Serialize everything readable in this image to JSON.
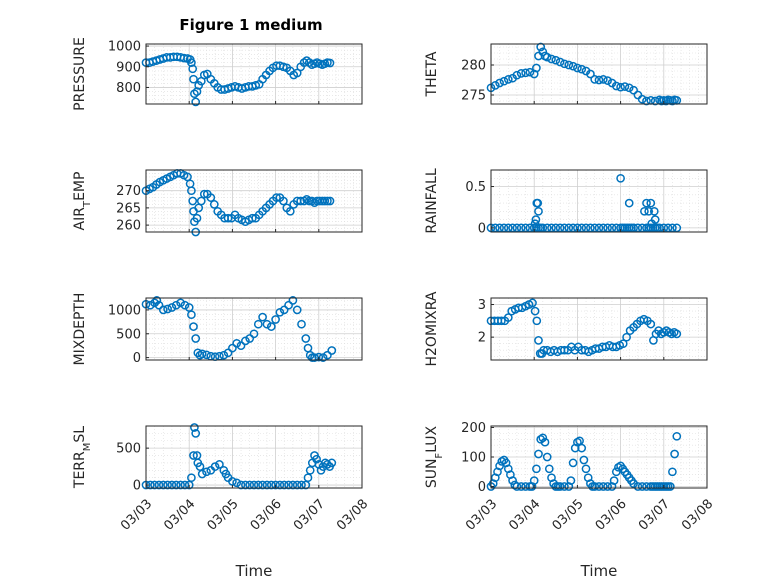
{
  "figure_title": "Figure 1 medium",
  "colors": {
    "marker": "#0072BD",
    "axis": "#262626",
    "grid": "#dcdcdc"
  },
  "chart_data": [
    {
      "id": "pressure",
      "type": "scatter",
      "title": "Figure 1 medium",
      "ylabel": "PRESSURE",
      "ylabel_main": "PRESSURE",
      "ylabel_sub": "",
      "ylabel_tail": "",
      "xlabel": "",
      "ylim": [
        720,
        1010
      ],
      "yticks": [
        800,
        900,
        1000
      ],
      "ytick_labels": [
        "800",
        "900",
        "1000"
      ],
      "x_day_start": 3,
      "xlim": [
        3,
        8
      ],
      "x": [
        3.0,
        3.08,
        3.16,
        3.24,
        3.32,
        3.4,
        3.48,
        3.56,
        3.64,
        3.72,
        3.8,
        3.88,
        3.96,
        4.02,
        4.05,
        4.08,
        4.1,
        4.12,
        4.15,
        4.18,
        4.22,
        4.28,
        4.35,
        4.42,
        4.5,
        4.58,
        4.66,
        4.74,
        4.82,
        4.9,
        4.98,
        5.06,
        5.14,
        5.22,
        5.3,
        5.38,
        5.46,
        5.54,
        5.62,
        5.7,
        5.78,
        5.86,
        5.94,
        6.02,
        6.1,
        6.18,
        6.26,
        6.34,
        6.42,
        6.5,
        6.58,
        6.66,
        6.72,
        6.78,
        6.84,
        6.9,
        6.96,
        7.02,
        7.08,
        7.14,
        7.2,
        7.26
      ],
      "y": [
        920,
        920,
        925,
        930,
        935,
        940,
        945,
        945,
        948,
        948,
        945,
        942,
        940,
        935,
        920,
        890,
        840,
        770,
        730,
        780,
        810,
        830,
        860,
        865,
        840,
        820,
        800,
        790,
        790,
        795,
        800,
        805,
        800,
        795,
        800,
        805,
        805,
        810,
        815,
        840,
        860,
        880,
        895,
        905,
        905,
        900,
        895,
        880,
        860,
        870,
        900,
        920,
        930,
        920,
        910,
        915,
        920,
        915,
        910,
        915,
        920,
        918
      ]
    },
    {
      "id": "theta",
      "type": "scatter",
      "ylabel": "THETA",
      "ylabel_main": "THETA",
      "ylabel_sub": "",
      "ylabel_tail": "",
      "xlabel": "",
      "ylim": [
        273.5,
        283.5
      ],
      "yticks": [
        275,
        280
      ],
      "ytick_labels": [
        "275",
        "280"
      ],
      "x_day_start": 3,
      "xlim": [
        3,
        8
      ],
      "x": [
        3.0,
        3.1,
        3.2,
        3.3,
        3.4,
        3.5,
        3.6,
        3.7,
        3.8,
        3.9,
        4.0,
        4.05,
        4.1,
        4.15,
        4.2,
        4.25,
        4.3,
        4.4,
        4.5,
        4.6,
        4.7,
        4.8,
        4.9,
        5.0,
        5.1,
        5.2,
        5.3,
        5.4,
        5.5,
        5.6,
        5.7,
        5.8,
        5.9,
        6.0,
        6.1,
        6.2,
        6.3,
        6.4,
        6.5,
        6.6,
        6.7,
        6.8,
        6.9,
        6.95,
        7.0,
        7.05,
        7.1,
        7.15,
        7.2,
        7.25,
        7.3
      ],
      "y": [
        276.2,
        276.6,
        277.0,
        277.3,
        277.6,
        277.8,
        278.3,
        278.6,
        278.7,
        278.8,
        278.5,
        279.5,
        281.5,
        283.0,
        282.2,
        281.5,
        281.3,
        281.0,
        280.8,
        280.5,
        280.2,
        280.0,
        279.8,
        279.5,
        279.3,
        279.0,
        278.5,
        277.6,
        277.5,
        277.6,
        277.4,
        277.0,
        276.5,
        276.3,
        276.4,
        276.2,
        275.8,
        275.0,
        274.3,
        274.0,
        274.1,
        274.0,
        274.2,
        274.0,
        274.1,
        274.0,
        274.2,
        274.1,
        274.0,
        274.2,
        274.1
      ]
    },
    {
      "id": "airtemp",
      "type": "scatter",
      "ylabel": "AIR_TEMP",
      "ylabel_main": "AIR",
      "ylabel_sub": "T",
      "ylabel_tail": "EMP",
      "xlabel": "",
      "ylim": [
        258,
        276
      ],
      "yticks": [
        260,
        265,
        270
      ],
      "ytick_labels": [
        "260",
        "265",
        "270"
      ],
      "x_day_start": 3,
      "xlim": [
        3,
        8
      ],
      "x": [
        3.0,
        3.08,
        3.16,
        3.24,
        3.32,
        3.4,
        3.48,
        3.56,
        3.64,
        3.72,
        3.8,
        3.88,
        3.96,
        4.02,
        4.05,
        4.08,
        4.1,
        4.12,
        4.15,
        4.18,
        4.22,
        4.28,
        4.35,
        4.42,
        4.5,
        4.58,
        4.66,
        4.74,
        4.82,
        4.9,
        4.98,
        5.06,
        5.14,
        5.22,
        5.3,
        5.38,
        5.46,
        5.54,
        5.62,
        5.7,
        5.78,
        5.86,
        5.94,
        6.02,
        6.1,
        6.18,
        6.26,
        6.34,
        6.42,
        6.5,
        6.58,
        6.66,
        6.72,
        6.78,
        6.84,
        6.9,
        6.96,
        7.02,
        7.08,
        7.14,
        7.2,
        7.26
      ],
      "y": [
        270,
        270.5,
        271,
        271.8,
        272.5,
        273,
        273.5,
        274,
        274.5,
        275,
        275,
        274.5,
        274,
        272,
        270,
        267,
        264,
        261,
        258,
        262,
        265,
        267,
        269,
        269,
        268,
        266,
        264,
        263,
        262,
        262,
        262,
        263,
        262,
        261.5,
        261,
        261.5,
        262,
        262,
        263,
        264,
        265,
        266,
        267,
        268,
        268,
        267,
        265,
        264,
        266,
        267,
        267,
        267,
        267.5,
        267,
        267,
        266.5,
        267,
        267,
        267,
        267,
        267,
        267
      ]
    },
    {
      "id": "rainfall",
      "type": "scatter",
      "ylabel": "RAINFALL",
      "ylabel_main": "RAINFALL",
      "ylabel_sub": "",
      "ylabel_tail": "",
      "xlabel": "",
      "ylim": [
        -0.05,
        0.7
      ],
      "yticks": [
        0,
        0.5
      ],
      "ytick_labels": [
        "0",
        "0.5"
      ],
      "x_day_start": 3,
      "xlim": [
        3,
        8
      ],
      "x": [
        3.0,
        3.1,
        3.2,
        3.3,
        3.4,
        3.5,
        3.6,
        3.7,
        3.8,
        3.9,
        4.0,
        4.05,
        4.1,
        4.15,
        4.2,
        4.3,
        4.4,
        4.5,
        4.6,
        4.7,
        4.8,
        4.9,
        5.0,
        5.1,
        5.2,
        5.3,
        5.4,
        5.5,
        5.6,
        5.7,
        5.8,
        5.9,
        6.0,
        6.05,
        6.1,
        6.15,
        6.2,
        6.25,
        6.3,
        6.4,
        6.5,
        6.6,
        6.65,
        6.7,
        6.75,
        6.8,
        6.85,
        6.9,
        7.0,
        7.1,
        7.2,
        7.3,
        4.02,
        4.04,
        4.06,
        4.08,
        4.1,
        6.0,
        6.2,
        6.55,
        6.6,
        6.65,
        6.7,
        6.72,
        6.78,
        6.8
      ],
      "y": [
        0,
        0,
        0,
        0,
        0,
        0,
        0,
        0,
        0,
        0,
        0,
        0,
        0,
        0,
        0,
        0,
        0,
        0,
        0,
        0,
        0,
        0,
        0,
        0,
        0,
        0,
        0,
        0,
        0,
        0,
        0,
        0,
        0,
        0,
        0,
        0,
        0,
        0,
        0,
        0,
        0,
        0,
        0,
        0,
        0,
        0,
        0,
        0,
        0,
        0,
        0,
        0,
        0.05,
        0.1,
        0.3,
        0.3,
        0.2,
        0.6,
        0.3,
        0.2,
        0.3,
        0.2,
        0.3,
        0.05,
        0.2,
        0.1
      ]
    },
    {
      "id": "mixdepth",
      "type": "scatter",
      "ylabel": "MIXDEPTH",
      "ylabel_main": "MIXDEPTH",
      "ylabel_sub": "",
      "ylabel_tail": "",
      "xlabel": "",
      "ylim": [
        -50,
        1250
      ],
      "yticks": [
        0,
        500,
        1000
      ],
      "ytick_labels": [
        "0",
        "500",
        "1000"
      ],
      "x_day_start": 3,
      "xlim": [
        3,
        8
      ],
      "x": [
        3.0,
        3.1,
        3.2,
        3.25,
        3.3,
        3.4,
        3.5,
        3.6,
        3.7,
        3.8,
        3.9,
        4.0,
        4.05,
        4.1,
        4.15,
        4.2,
        4.25,
        4.3,
        4.4,
        4.5,
        4.6,
        4.7,
        4.8,
        4.9,
        5.0,
        5.1,
        5.2,
        5.3,
        5.4,
        5.5,
        5.6,
        5.7,
        5.8,
        5.9,
        6.0,
        6.1,
        6.2,
        6.3,
        6.4,
        6.5,
        6.6,
        6.7,
        6.75,
        6.8,
        6.85,
        6.9,
        7.0,
        7.1,
        7.2,
        7.3
      ],
      "y": [
        1120,
        1100,
        1150,
        1200,
        1100,
        1000,
        1020,
        1050,
        1100,
        1150,
        1100,
        1050,
        900,
        650,
        400,
        100,
        50,
        80,
        60,
        30,
        20,
        30,
        50,
        100,
        200,
        300,
        250,
        350,
        400,
        500,
        700,
        850,
        700,
        650,
        800,
        950,
        1000,
        1100,
        1200,
        1000,
        700,
        400,
        200,
        50,
        0,
        0,
        10,
        0,
        50,
        150
      ]
    },
    {
      "id": "h2omixra",
      "type": "scatter",
      "ylabel": "H2OMIXRA",
      "ylabel_main": "H2OMIXRA",
      "ylabel_sub": "",
      "ylabel_tail": "",
      "xlabel": "",
      "ylim": [
        1.3,
        3.2
      ],
      "yticks": [
        2,
        3
      ],
      "ytick_labels": [
        "2",
        "3"
      ],
      "x_day_start": 3,
      "xlim": [
        3,
        8
      ],
      "x": [
        3.0,
        3.08,
        3.16,
        3.24,
        3.32,
        3.4,
        3.48,
        3.56,
        3.64,
        3.72,
        3.8,
        3.88,
        3.96,
        4.02,
        4.06,
        4.1,
        4.14,
        4.18,
        4.22,
        4.3,
        4.38,
        4.46,
        4.54,
        4.62,
        4.7,
        4.78,
        4.86,
        4.94,
        5.02,
        5.1,
        5.18,
        5.26,
        5.34,
        5.42,
        5.5,
        5.58,
        5.66,
        5.74,
        5.82,
        5.9,
        5.98,
        6.06,
        6.14,
        6.22,
        6.3,
        6.38,
        6.46,
        6.54,
        6.62,
        6.7,
        6.76,
        6.82,
        6.88,
        6.94,
        7.0,
        7.06,
        7.12,
        7.18,
        7.24,
        7.3
      ],
      "y": [
        2.5,
        2.5,
        2.5,
        2.5,
        2.5,
        2.6,
        2.8,
        2.85,
        2.9,
        2.9,
        2.95,
        3.0,
        3.05,
        2.8,
        2.5,
        1.9,
        1.5,
        1.5,
        1.6,
        1.6,
        1.55,
        1.6,
        1.55,
        1.6,
        1.6,
        1.6,
        1.7,
        1.6,
        1.7,
        1.6,
        1.6,
        1.55,
        1.6,
        1.65,
        1.65,
        1.7,
        1.7,
        1.75,
        1.7,
        1.7,
        1.75,
        1.8,
        2.0,
        2.2,
        2.3,
        2.4,
        2.5,
        2.55,
        2.5,
        2.4,
        1.9,
        2.1,
        2.2,
        2.1,
        2.15,
        2.2,
        2.15,
        2.1,
        2.15,
        2.1
      ]
    },
    {
      "id": "terrmsl",
      "type": "scatter",
      "ylabel": "TERR_MSL",
      "ylabel_main": "TERR",
      "ylabel_sub": "M",
      "ylabel_tail": "SL",
      "xlabel": "Time",
      "ylim": [
        -40,
        800
      ],
      "yticks": [
        0,
        500
      ],
      "ytick_labels": [
        "0",
        "500"
      ],
      "x_day_start": 3,
      "xlim": [
        3,
        8
      ],
      "xticks": [
        3,
        4,
        5,
        6,
        7,
        8
      ],
      "xtick_labels": [
        "03/03",
        "03/04",
        "03/05",
        "03/06",
        "03/07",
        "03/08"
      ],
      "x": [
        3.0,
        3.1,
        3.2,
        3.3,
        3.4,
        3.5,
        3.6,
        3.7,
        3.8,
        3.9,
        4.0,
        4.05,
        4.1,
        4.12,
        4.15,
        4.18,
        4.2,
        4.25,
        4.3,
        4.4,
        4.5,
        4.6,
        4.7,
        4.8,
        4.85,
        4.9,
        5.0,
        5.1,
        5.2,
        5.3,
        5.4,
        5.5,
        5.6,
        5.7,
        5.8,
        5.9,
        6.0,
        6.1,
        6.2,
        6.3,
        6.4,
        6.5,
        6.6,
        6.7,
        6.75,
        6.8,
        6.85,
        6.9,
        6.95,
        7.0,
        7.05,
        7.1,
        7.15,
        7.2,
        7.25,
        7.3
      ],
      "y": [
        0,
        0,
        0,
        0,
        0,
        0,
        0,
        0,
        0,
        0,
        0,
        100,
        400,
        780,
        700,
        400,
        300,
        250,
        150,
        180,
        200,
        250,
        280,
        200,
        150,
        100,
        50,
        30,
        0,
        0,
        0,
        0,
        0,
        0,
        0,
        0,
        0,
        0,
        0,
        0,
        0,
        0,
        0,
        0,
        100,
        200,
        300,
        400,
        350,
        280,
        200,
        250,
        300,
        280,
        250,
        300
      ]
    },
    {
      "id": "sunflux",
      "type": "scatter",
      "ylabel": "SUN_FLUX",
      "ylabel_main": "SUN",
      "ylabel_sub": "F",
      "ylabel_tail": "LUX",
      "xlabel": "Time",
      "ylim": [
        -5,
        205
      ],
      "yticks": [
        0,
        100,
        200
      ],
      "ytick_labels": [
        "0",
        "100",
        "200"
      ],
      "x_day_start": 3,
      "xlim": [
        3,
        8
      ],
      "xticks": [
        3,
        4,
        5,
        6,
        7,
        8
      ],
      "xtick_labels": [
        "03/03",
        "03/04",
        "03/05",
        "03/06",
        "03/07",
        "03/08"
      ],
      "x": [
        3.0,
        3.05,
        3.1,
        3.15,
        3.2,
        3.25,
        3.3,
        3.35,
        3.4,
        3.45,
        3.5,
        3.55,
        3.6,
        3.7,
        3.8,
        3.9,
        3.95,
        4.0,
        4.05,
        4.1,
        4.15,
        4.2,
        4.25,
        4.3,
        4.35,
        4.4,
        4.45,
        4.5,
        4.55,
        4.6,
        4.7,
        4.8,
        4.85,
        4.9,
        4.95,
        5.0,
        5.05,
        5.1,
        5.15,
        5.2,
        5.25,
        5.3,
        5.35,
        5.4,
        5.5,
        5.6,
        5.7,
        5.8,
        5.85,
        5.9,
        5.95,
        6.0,
        6.05,
        6.1,
        6.15,
        6.2,
        6.25,
        6.3,
        6.4,
        6.5,
        6.6,
        6.7,
        6.75,
        6.8,
        6.85,
        6.9,
        6.95,
        7.0,
        7.05,
        7.1,
        7.15,
        7.2,
        7.25,
        7.3
      ],
      "y": [
        0,
        10,
        30,
        50,
        70,
        85,
        90,
        80,
        60,
        40,
        20,
        5,
        0,
        0,
        0,
        0,
        0,
        20,
        60,
        110,
        160,
        165,
        150,
        100,
        60,
        30,
        10,
        0,
        0,
        0,
        0,
        0,
        20,
        80,
        130,
        150,
        155,
        130,
        90,
        60,
        30,
        10,
        0,
        0,
        0,
        0,
        0,
        0,
        20,
        50,
        65,
        70,
        60,
        50,
        40,
        30,
        20,
        10,
        0,
        0,
        0,
        0,
        0,
        0,
        0,
        0,
        0,
        0,
        0,
        0,
        0,
        50,
        110,
        170
      ]
    }
  ]
}
